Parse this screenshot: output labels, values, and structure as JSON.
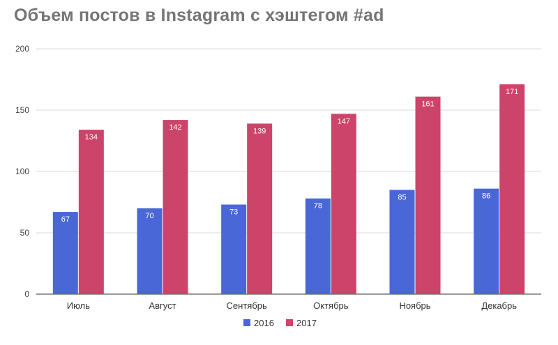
{
  "title": "Объем постов в Instagram с хэштегом #ad",
  "colors": {
    "s2016": "#4a67d8",
    "s2017": "#cc4469"
  },
  "chart_data": {
    "type": "bar",
    "title": "Объем постов в Instagram с хэштегом #ad",
    "xlabel": "",
    "ylabel": "",
    "categories": [
      "Июль",
      "Август",
      "Сентябрь",
      "Октябрь",
      "Ноябрь",
      "Декабрь"
    ],
    "series": [
      {
        "name": "2016",
        "values": [
          67,
          70,
          73,
          78,
          85,
          86
        ]
      },
      {
        "name": "2017",
        "values": [
          134,
          142,
          139,
          147,
          161,
          171
        ]
      }
    ],
    "ylim": [
      0,
      200
    ],
    "yticks": [
      0,
      50,
      100,
      150,
      200
    ],
    "grid": true,
    "legend": "bottom-center",
    "data_labels": true
  }
}
